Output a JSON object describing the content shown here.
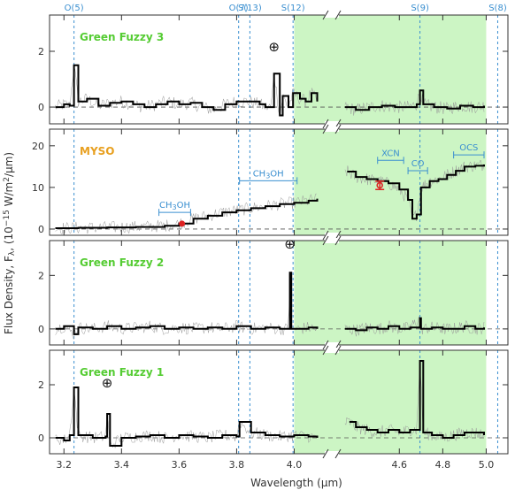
{
  "colors": {
    "shading": "#ccf5c4",
    "marker_lines": "#3a8fd0",
    "spectrum": "#000000",
    "raw_spectrum": "#999999",
    "title_green": "#55cc33",
    "title_orange": "#e8a020",
    "red_marker": "#dd2222"
  },
  "xlabel": "Wavelength (μm)",
  "ylabel": "Flux Density, F",
  "ylabel_sub": "λ",
  "ylabel_units": "(10",
  "ylabel_exp": "−15",
  "ylabel_units2": " W/m",
  "ylabel_exp2": "2",
  "ylabel_units3": "/μm)",
  "axis_break": "//",
  "x_ticks": [
    "3.2",
    "3.4",
    "3.6",
    "3.8",
    "4.0",
    "4.6",
    "4.8",
    "5.0"
  ],
  "top_lines": [
    {
      "label": "O(5)",
      "x": 3.235
    },
    {
      "label": "O(7)",
      "x": 3.807
    },
    {
      "label": "S(13)",
      "x": 3.846
    },
    {
      "label": "S(12)",
      "x": 3.996
    },
    {
      "label": "S(9)",
      "x": 4.695
    },
    {
      "label": "S(8)",
      "x": 5.053
    }
  ],
  "shaded_region": [
    4.0,
    5.0
  ],
  "plus_symbol": "⊕",
  "panels": [
    {
      "title": "Green Fuzzy 3",
      "title_color": "title_green",
      "y_ticks": [
        "0",
        "2"
      ],
      "ylim": [
        -0.6,
        3.3
      ]
    },
    {
      "title": "MYSO",
      "title_color": "title_orange",
      "y_ticks": [
        "0",
        "10",
        "20"
      ],
      "ylim": [
        -1.5,
        24
      ]
    },
    {
      "title": "Green Fuzzy 2",
      "title_color": "title_green",
      "y_ticks": [
        "0",
        "2"
      ],
      "ylim": [
        -0.6,
        3.3
      ]
    },
    {
      "title": "Green Fuzzy 1",
      "title_color": "title_green",
      "y_ticks": [
        "0",
        "2"
      ],
      "ylim": [
        -0.6,
        3.3
      ]
    }
  ],
  "features": [
    {
      "label": "CH",
      "sub": "3",
      "rest": "OH",
      "x1": 3.53,
      "x2": 3.64,
      "y": 4.0
    },
    {
      "label": "CH",
      "sub": "3",
      "rest": "OH",
      "x1": 3.81,
      "x2": 4.01,
      "y": 11.6
    },
    {
      "label": "XCN",
      "x1": 4.5,
      "x2": 4.62,
      "y": 16.5
    },
    {
      "label": "CO",
      "x1": 4.64,
      "x2": 4.73,
      "y": 14.0
    },
    {
      "label": "OCS",
      "x1": 4.85,
      "x2": 4.99,
      "y": 17.8
    }
  ],
  "chart_data": [
    {
      "type": "line",
      "title": "Green Fuzzy 3",
      "xlabel": "Wavelength (μm)",
      "ylim": [
        -0.6,
        3.3
      ],
      "series": [
        {
          "x": [
            3.17,
            3.2,
            3.22,
            3.235,
            3.25,
            3.28,
            3.32,
            3.36,
            3.4,
            3.44,
            3.48,
            3.52,
            3.56,
            3.6,
            3.64,
            3.68,
            3.72,
            3.76,
            3.8,
            3.84,
            3.88,
            3.9,
            3.92,
            3.93,
            3.95,
            3.96,
            3.98,
            3.996,
            4.02,
            4.04,
            4.06,
            4.08,
            4.35,
            4.4,
            4.46,
            4.52,
            4.58,
            4.64,
            4.68,
            4.695,
            4.71,
            4.76,
            4.82,
            4.88,
            4.94,
            4.99
          ],
          "values": [
            0.0,
            0.1,
            0.05,
            1.5,
            0.2,
            0.3,
            0.05,
            0.15,
            0.2,
            0.1,
            0.0,
            0.1,
            0.2,
            0.1,
            0.15,
            0.0,
            -0.1,
            0.1,
            0.2,
            0.2,
            0.1,
            0.0,
            0.0,
            1.2,
            -0.3,
            0.4,
            0.0,
            0.5,
            0.3,
            0.2,
            0.5,
            0.2,
            0.0,
            -0.1,
            0.0,
            0.05,
            0.0,
            0.0,
            0.1,
            0.6,
            0.1,
            0.0,
            -0.05,
            0.05,
            0.0,
            0.05
          ]
        }
      ]
    },
    {
      "type": "line",
      "title": "MYSO",
      "xlabel": "Wavelength (μm)",
      "ylim": [
        -1.5,
        24
      ],
      "series": [
        {
          "x": [
            3.17,
            3.25,
            3.35,
            3.45,
            3.55,
            3.6,
            3.65,
            3.7,
            3.75,
            3.8,
            3.85,
            3.9,
            3.95,
            4.0,
            4.05,
            4.08,
            4.36,
            4.4,
            4.45,
            4.5,
            4.55,
            4.6,
            4.64,
            4.66,
            4.68,
            4.7,
            4.74,
            4.78,
            4.82,
            4.86,
            4.9,
            4.95,
            4.99
          ],
          "values": [
            0.2,
            0.3,
            0.4,
            0.5,
            0.8,
            1.3,
            2.5,
            3.2,
            4.0,
            4.5,
            5.0,
            5.5,
            6.0,
            6.3,
            6.8,
            7.3,
            13.8,
            12.5,
            12.0,
            11.5,
            11.0,
            9.5,
            7.0,
            2.5,
            3.5,
            10.0,
            11.5,
            12.0,
            13.0,
            14.0,
            15.0,
            15.2,
            15.5
          ]
        }
      ],
      "points": [
        {
          "x": 3.61,
          "y": 1.3
        },
        {
          "x": 4.51,
          "y": 10.5,
          "yerr": 1.0
        }
      ]
    },
    {
      "type": "line",
      "title": "Green Fuzzy 2",
      "xlabel": "Wavelength (μm)",
      "ylim": [
        -0.6,
        3.3
      ],
      "series": [
        {
          "x": [
            3.17,
            3.2,
            3.235,
            3.25,
            3.3,
            3.35,
            3.4,
            3.45,
            3.5,
            3.55,
            3.6,
            3.65,
            3.7,
            3.75,
            3.8,
            3.85,
            3.9,
            3.95,
            3.98,
            3.985,
            3.99,
            4.02,
            4.05,
            4.08,
            4.35,
            4.4,
            4.45,
            4.5,
            4.55,
            4.6,
            4.65,
            4.695,
            4.7,
            4.75,
            4.8,
            4.85,
            4.9,
            4.95,
            4.99
          ],
          "values": [
            0.0,
            0.1,
            -0.2,
            0.05,
            0.0,
            0.1,
            0.0,
            0.05,
            0.1,
            0.0,
            0.05,
            0.0,
            0.05,
            0.0,
            0.1,
            0.0,
            0.05,
            0.0,
            0.0,
            2.1,
            0.0,
            0.0,
            0.05,
            0.0,
            0.0,
            -0.05,
            0.05,
            0.0,
            0.1,
            0.0,
            0.05,
            0.4,
            0.0,
            0.05,
            0.0,
            0.0,
            0.1,
            0.0,
            0.05
          ]
        }
      ]
    },
    {
      "type": "line",
      "title": "Green Fuzzy 1",
      "xlabel": "Wavelength (μm)",
      "ylim": [
        -0.6,
        3.3
      ],
      "series": [
        {
          "x": [
            3.17,
            3.2,
            3.22,
            3.235,
            3.25,
            3.3,
            3.345,
            3.35,
            3.36,
            3.4,
            3.45,
            3.5,
            3.55,
            3.6,
            3.65,
            3.7,
            3.75,
            3.8,
            3.81,
            3.85,
            3.9,
            3.95,
            4.0,
            4.05,
            4.08,
            4.37,
            4.4,
            4.45,
            4.5,
            4.55,
            4.6,
            4.65,
            4.68,
            4.695,
            4.71,
            4.75,
            4.8,
            4.85,
            4.9,
            4.95,
            4.99
          ],
          "values": [
            0.0,
            -0.1,
            0.1,
            1.9,
            0.1,
            0.0,
            0.05,
            0.9,
            -0.3,
            0.0,
            0.05,
            0.1,
            0.0,
            0.1,
            0.05,
            0.0,
            0.1,
            0.05,
            0.6,
            0.2,
            0.1,
            0.05,
            0.1,
            0.05,
            0.0,
            0.6,
            0.4,
            0.3,
            0.2,
            0.3,
            0.2,
            0.3,
            0.3,
            2.9,
            0.2,
            0.1,
            0.0,
            0.1,
            0.2,
            0.2,
            0.1
          ]
        }
      ],
      "points": []
    }
  ]
}
